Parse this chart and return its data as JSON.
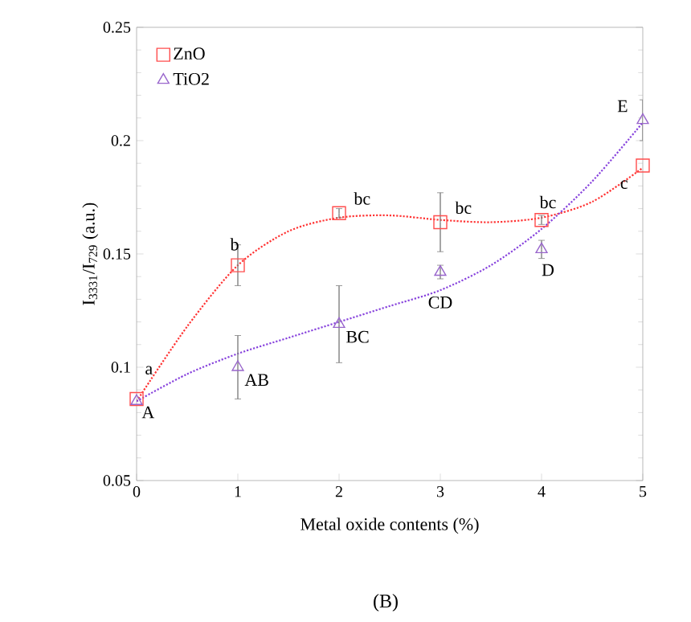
{
  "chart_data": {
    "type": "scatter",
    "xlabel": "Metal oxide contents (%)",
    "ylabel": "I$_{3331}$/I$_{729}$ (a.u.)",
    "xlim": [
      0,
      5
    ],
    "ylim": [
      0.05,
      0.25
    ],
    "xticks": [
      0,
      1,
      2,
      3,
      4,
      5
    ],
    "yticks": [
      0.05,
      0.1,
      0.15,
      0.2,
      0.25
    ],
    "legend": "top left",
    "grid": false,
    "series": [
      {
        "name": "ZnO",
        "marker": "square",
        "color": "#ff4d4d",
        "x": [
          0,
          1,
          2,
          3,
          4,
          5
        ],
        "values": [
          0.086,
          0.145,
          0.168,
          0.164,
          0.165,
          0.189
        ],
        "errors": [
          null,
          0.009,
          0.002,
          0.013,
          0.002,
          null
        ]
      },
      {
        "name": "TiO2",
        "marker": "triangle",
        "color": "#9966cc",
        "x": [
          0,
          1,
          2,
          3,
          4,
          5
        ],
        "values": [
          0.085,
          0.1,
          0.119,
          0.142,
          0.152,
          0.209
        ],
        "errors": [
          null,
          0.014,
          0.017,
          0.003,
          0.004,
          0.009
        ]
      },
      {
        "type": "line",
        "marker": "none",
        "line_style": "dotted",
        "color": "#ff3333",
        "x": [
          0,
          0.5,
          1,
          1.5,
          2,
          2.5,
          3,
          3.5,
          4,
          4.5,
          5
        ],
        "values": [
          0.085,
          0.118,
          0.145,
          0.16,
          0.166,
          0.167,
          0.165,
          0.164,
          0.166,
          0.173,
          0.188
        ]
      },
      {
        "type": "line",
        "marker": "none",
        "line_style": "dotted",
        "color": "#8844dd",
        "x": [
          0,
          0.5,
          1,
          1.5,
          2,
          2.5,
          3,
          3.5,
          4,
          4.5,
          5
        ],
        "values": [
          0.085,
          0.097,
          0.106,
          0.113,
          0.12,
          0.127,
          0.134,
          0.145,
          0.161,
          0.182,
          0.208
        ]
      }
    ],
    "annotations": [
      {
        "text": "a",
        "x": 0,
        "y": 0.086
      },
      {
        "text": "b",
        "x": 1,
        "y": 0.145
      },
      {
        "text": "bc",
        "x": 2,
        "y": 0.168
      },
      {
        "text": "bc",
        "x": 3,
        "y": 0.164
      },
      {
        "text": "bc",
        "x": 4,
        "y": 0.165
      },
      {
        "text": "c",
        "x": 5,
        "y": 0.189
      },
      {
        "text": "A",
        "x": 0,
        "y": 0.085
      },
      {
        "text": "AB",
        "x": 1,
        "y": 0.1
      },
      {
        "text": "BC",
        "x": 2,
        "y": 0.119
      },
      {
        "text": "CD",
        "x": 3,
        "y": 0.142
      },
      {
        "text": "D",
        "x": 4,
        "y": 0.152
      },
      {
        "text": "E",
        "x": 5,
        "y": 0.209
      },
      "(B)"
    ]
  }
}
